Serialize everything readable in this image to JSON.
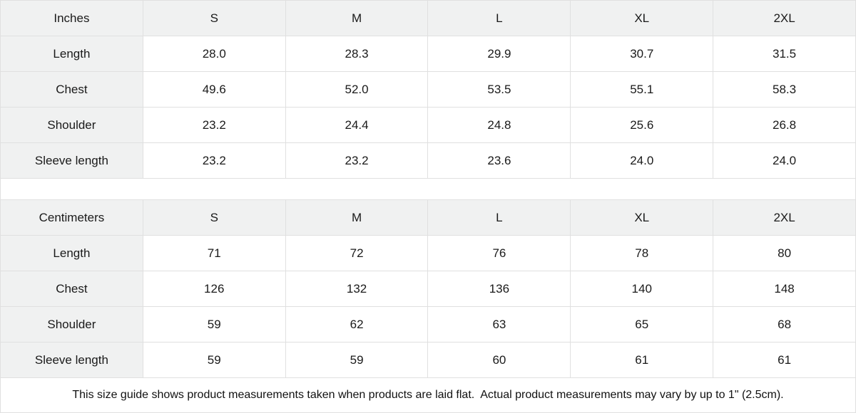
{
  "tables": [
    {
      "unit_label": "Inches",
      "sizes": [
        "S",
        "M",
        "L",
        "XL",
        "2XL"
      ],
      "rows": [
        {
          "label": "Length",
          "values": [
            "28.0",
            "28.3",
            "29.9",
            "30.7",
            "31.5"
          ]
        },
        {
          "label": "Chest",
          "values": [
            "49.6",
            "52.0",
            "53.5",
            "55.1",
            "58.3"
          ]
        },
        {
          "label": "Shoulder",
          "values": [
            "23.2",
            "24.4",
            "24.8",
            "25.6",
            "26.8"
          ]
        },
        {
          "label": "Sleeve length",
          "values": [
            "23.2",
            "23.2",
            "23.6",
            "24.0",
            "24.0"
          ]
        }
      ]
    },
    {
      "unit_label": "Centimeters",
      "sizes": [
        "S",
        "M",
        "L",
        "XL",
        "2XL"
      ],
      "rows": [
        {
          "label": "Length",
          "values": [
            "71",
            "72",
            "76",
            "78",
            "80"
          ]
        },
        {
          "label": "Chest",
          "values": [
            "126",
            "132",
            "136",
            "140",
            "148"
          ]
        },
        {
          "label": "Shoulder",
          "values": [
            "59",
            "62",
            "63",
            "65",
            "68"
          ]
        },
        {
          "label": "Sleeve length",
          "values": [
            "59",
            "59",
            "60",
            "61",
            "61"
          ]
        }
      ]
    }
  ],
  "footer_note": "This size guide shows product measurements taken when products are laid flat.  Actual product measurements may vary by up to 1\" (2.5cm).",
  "colors": {
    "shaded_bg": "#f0f1f1",
    "grid_line": "#e0e0e0",
    "text": "#1a1a1a"
  }
}
